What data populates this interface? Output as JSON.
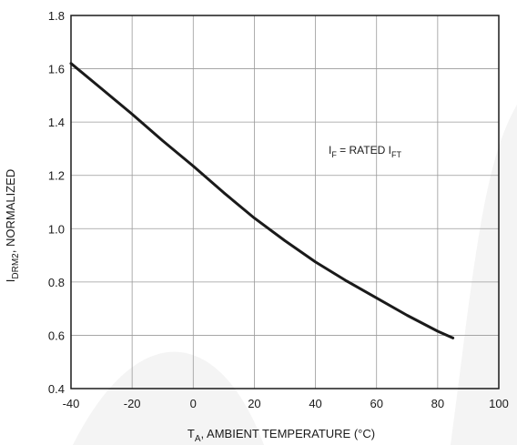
{
  "chart_data": {
    "type": "line",
    "xlabel": {
      "main": "T",
      "sub": "A",
      "rest": ", AMBIENT TEMPERATURE (°C)"
    },
    "ylabel": {
      "main": "I",
      "sub": "DRM2",
      "rest": ", NORMALIZED"
    },
    "xlim": [
      -40,
      100
    ],
    "ylim": [
      0.4,
      1.8
    ],
    "xticks": [
      -40,
      -20,
      0,
      20,
      40,
      60,
      80,
      100
    ],
    "yticks": [
      0.4,
      0.6,
      0.8,
      1.0,
      1.2,
      1.4,
      1.6,
      1.8
    ],
    "xtick_labels": [
      "-40",
      "-20",
      "0",
      "20",
      "40",
      "60",
      "80",
      "100"
    ],
    "ytick_labels": [
      "0.4",
      "0.6",
      "0.8",
      "1.0",
      "1.2",
      "1.4",
      "1.6",
      "1.8"
    ],
    "grid": true,
    "annotation": {
      "p1": "I",
      "s1": "F",
      "p2": " = RATED I",
      "s2": "FT"
    },
    "series": [
      {
        "x": [
          -40,
          -30,
          -20,
          -10,
          0,
          10,
          20,
          30,
          40,
          50,
          60,
          70,
          80,
          85
        ],
        "y": [
          1.62,
          1.525,
          1.43,
          1.33,
          1.235,
          1.135,
          1.04,
          0.955,
          0.875,
          0.805,
          0.74,
          0.675,
          0.615,
          0.59
        ]
      }
    ]
  }
}
